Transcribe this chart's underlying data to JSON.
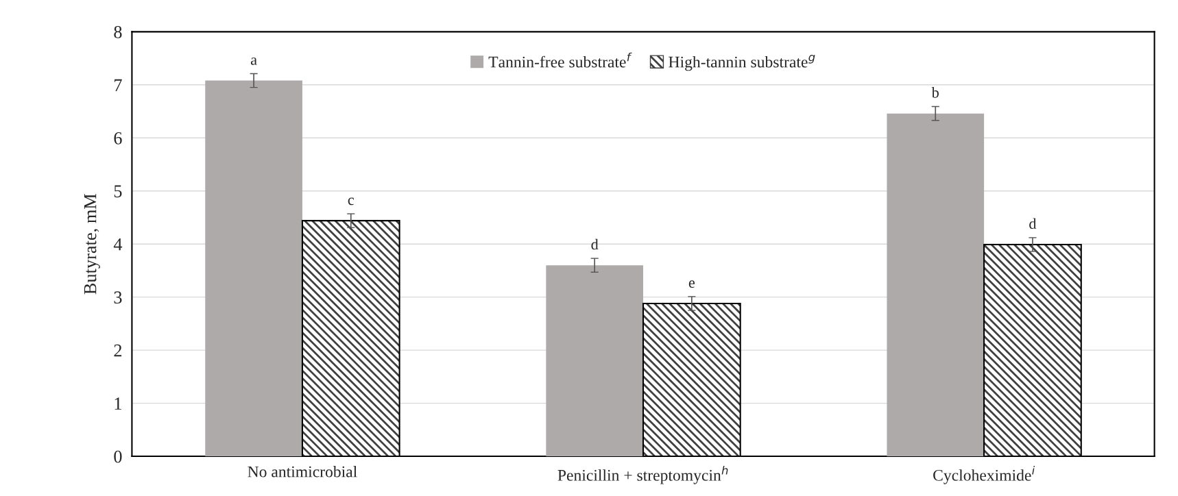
{
  "chart_data": {
    "type": "bar",
    "ylabel": "Butyrate, mM",
    "categories": [
      "No antimicrobial",
      "Penicillin + streptomycin$^{h}$",
      "Cycloheximide$^{i}$"
    ],
    "series": [
      {
        "name": "Tannin-free substrate$^{f}$",
        "color": "#aeaaaa",
        "values": [
          7.08,
          3.6,
          6.46
        ],
        "errors": [
          0.13,
          0.13,
          0.13
        ]
      },
      {
        "name": "High-tannin substrate$^{g}$",
        "color": "#404040",
        "values": [
          4.44,
          2.88,
          3.99
        ],
        "errors": [
          0.13,
          0.13,
          0.13
        ]
      }
    ],
    "annotations": [
      "a",
      "c",
      "d",
      "e",
      "b",
      "d"
    ],
    "ylim": [
      0,
      8
    ],
    "yticks": [
      0,
      1,
      2,
      3,
      4,
      5,
      6,
      7,
      8
    ],
    "grid": "y",
    "legend": "top"
  }
}
